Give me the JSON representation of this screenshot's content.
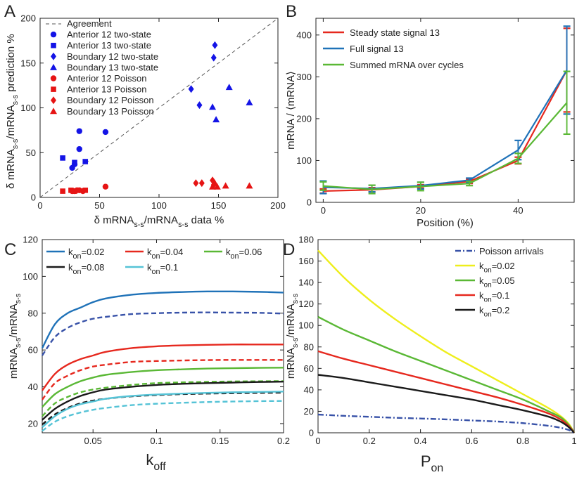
{
  "chart_data": [
    {
      "panel": "A",
      "type": "scatter",
      "xlabel": "δ mRNA_{s-s}/mRNA_{s-s} data %",
      "ylabel": "δ mRNA_{s-s}/mRNA_{s-s} prediction %",
      "xlim": [
        0,
        200
      ],
      "ylim": [
        0,
        200
      ],
      "xticks": [
        0,
        50,
        100,
        150,
        200
      ],
      "yticks": [
        0,
        50,
        100,
        150,
        200
      ],
      "legend_position": "top-left",
      "reference_line": {
        "name": "Agreement",
        "x": [
          0,
          200
        ],
        "y": [
          0,
          200
        ],
        "color": "#555555",
        "style": "dashed"
      },
      "series": [
        {
          "name": "Anterior 12 two-state",
          "marker": "circle",
          "color": "#1414e6",
          "points": [
            [
              33,
              74
            ],
            [
              55,
              73
            ],
            [
              33,
              54
            ],
            [
              29,
              37
            ],
            [
              27,
              33
            ]
          ]
        },
        {
          "name": "Anterior 13 two-state",
          "marker": "square",
          "color": "#1414e6",
          "points": [
            [
              19,
              44
            ],
            [
              29,
              39
            ],
            [
              38,
              40
            ]
          ]
        },
        {
          "name": "Boundary 12 two-state",
          "marker": "diamond",
          "color": "#1414e6",
          "points": [
            [
              147,
              170
            ],
            [
              146,
              156
            ],
            [
              127,
              121
            ],
            [
              134,
              103
            ]
          ]
        },
        {
          "name": "Boundary 13 two-state",
          "marker": "triangle",
          "color": "#1414e6",
          "points": [
            [
              159,
              123
            ],
            [
              176,
              106
            ],
            [
              145,
              101
            ],
            [
              148,
              87
            ]
          ]
        },
        {
          "name": "Anterior 12 Poisson",
          "marker": "circle",
          "color": "#e61414",
          "points": [
            [
              27,
              7
            ],
            [
              29,
              7
            ],
            [
              31,
              8
            ],
            [
              33,
              8
            ],
            [
              36,
              7
            ],
            [
              55,
              12
            ]
          ]
        },
        {
          "name": "Anterior 13 Poisson",
          "marker": "square",
          "color": "#e61414",
          "points": [
            [
              19,
              7
            ],
            [
              26,
              8
            ],
            [
              29,
              7
            ],
            [
              38,
              8
            ]
          ]
        },
        {
          "name": "Boundary 12 Poisson",
          "marker": "diamond",
          "color": "#e61414",
          "points": [
            [
              131,
              16
            ],
            [
              136,
              16
            ],
            [
              145,
              19
            ],
            [
              146,
              14
            ]
          ]
        },
        {
          "name": "Boundary 13 Poisson",
          "marker": "triangle",
          "color": "#e61414",
          "points": [
            [
              145,
              12
            ],
            [
              149,
              12
            ],
            [
              147,
              16
            ],
            [
              156,
              13
            ],
            [
              176,
              13
            ]
          ]
        }
      ]
    },
    {
      "panel": "B",
      "type": "line",
      "xlabel": "Position (%)",
      "ylabel": "mRNA / ⟨mRNA⟩",
      "xlim": [
        -1.5,
        51.5
      ],
      "ylim": [
        0,
        440
      ],
      "xticks": [
        0,
        20,
        40
      ],
      "yticks": [
        0,
        100,
        200,
        300,
        400
      ],
      "legend_position": "top-left",
      "x": [
        0,
        10,
        20,
        30,
        40,
        50
      ],
      "series": [
        {
          "name": "Steady state signal 13",
          "color": "#e6281e",
          "values": [
            27,
            30,
            38,
            50,
            100,
            316
          ],
          "err": [
            5,
            5,
            4,
            5,
            8,
            100
          ]
        },
        {
          "name": "Full signal 13",
          "color": "#1f72b8",
          "values": [
            36,
            33,
            40,
            53,
            125,
            316
          ],
          "err": [
            15,
            8,
            8,
            5,
            23,
            105
          ]
        },
        {
          "name": "Summed mRNA over cycles",
          "color": "#5ab835",
          "values": [
            39,
            31,
            38,
            45,
            105,
            238
          ],
          "err": [
            10,
            10,
            10,
            5,
            12,
            75
          ]
        }
      ]
    },
    {
      "panel": "C",
      "type": "line",
      "xlabel": "k_{off}",
      "ylabel": "mRNA_{s-s}/mRNA_{s-s}",
      "xlim": [
        0.01,
        0.2
      ],
      "ylim": [
        15,
        120
      ],
      "xticks": [
        0.05,
        0.1,
        0.15,
        0.2
      ],
      "xtick_labels": [
        "0.05",
        "0.1",
        "0.15",
        "0.2"
      ],
      "yticks": [
        20,
        40,
        60,
        80,
        100,
        120
      ],
      "legend_position": "top",
      "x": [
        0.01,
        0.02,
        0.03,
        0.04,
        0.05,
        0.06,
        0.08,
        0.1,
        0.12,
        0.14,
        0.16,
        0.18,
        0.2
      ],
      "series": [
        {
          "name": "k_{on}=0.02",
          "color": "#1f72b8",
          "style": "solid",
          "values": [
            61,
            74,
            80,
            83,
            86,
            88,
            90,
            91,
            91.5,
            91.8,
            91.8,
            91.6,
            91.2
          ]
        },
        {
          "name": "k_{on}=0.02 (dashed)",
          "color": "#3852a8",
          "style": "dashed",
          "legend": false,
          "values": [
            57,
            67,
            72,
            75,
            77,
            78,
            79.5,
            80,
            80.3,
            80.4,
            80.3,
            80.2,
            79.8
          ]
        },
        {
          "name": "k_{on}=0.04",
          "color": "#e6281e",
          "style": "solid",
          "values": [
            38,
            47,
            52,
            55,
            57,
            59,
            61,
            62,
            62.5,
            62.8,
            63,
            63,
            63
          ]
        },
        {
          "name": "k_{on}=0.04 (dashed)",
          "color": "#e6281e",
          "style": "dashed",
          "legend": false,
          "values": [
            33,
            42,
            46,
            49,
            51,
            52,
            53.5,
            54,
            54.3,
            54.5,
            54.6,
            54.6,
            54.6
          ]
        },
        {
          "name": "k_{on}=0.06",
          "color": "#5ab835",
          "style": "solid",
          "values": [
            29,
            36,
            40,
            43,
            45,
            46.5,
            48,
            49,
            49.5,
            49.9,
            50.1,
            50.3,
            50.4
          ]
        },
        {
          "name": "k_{on}=0.06 (dashed)",
          "color": "#5ab835",
          "style": "dashed",
          "legend": false,
          "values": [
            24,
            31,
            34.5,
            37,
            38.5,
            39.5,
            41,
            42,
            42.4,
            42.7,
            42.9,
            43,
            43.1
          ]
        },
        {
          "name": "k_{on}=0.08",
          "color": "#1a1a1a",
          "style": "solid",
          "values": [
            22,
            28,
            32,
            35,
            37,
            38.5,
            40,
            41,
            41.6,
            42,
            42.3,
            42.6,
            42.8
          ]
        },
        {
          "name": "k_{on}=0.08 (dashed)",
          "color": "#1a1a1a",
          "style": "dashed",
          "legend": false,
          "values": [
            19.5,
            25,
            28.5,
            31,
            32.5,
            33.5,
            34.8,
            35.5,
            36,
            36.3,
            36.5,
            36.7,
            36.8
          ]
        },
        {
          "name": "k_{on}=0.1",
          "color": "#55c3d6",
          "style": "solid",
          "values": [
            18,
            24,
            28,
            30.5,
            32,
            33.5,
            35,
            35.8,
            36.3,
            36.7,
            37,
            37.2,
            37.4
          ]
        },
        {
          "name": "k_{on}=0.1 (dashed)",
          "color": "#55c3d6",
          "style": "dashed",
          "legend": false,
          "values": [
            16,
            21,
            24,
            26,
            27.5,
            28.5,
            30,
            30.8,
            31.3,
            31.7,
            32,
            32.2,
            32.3
          ]
        }
      ]
    },
    {
      "panel": "D",
      "type": "line",
      "xlabel": "P_{on}",
      "ylabel": "mRNA_{s-s}/mRNA_{s-s}",
      "xlim": [
        0,
        1
      ],
      "ylim": [
        0,
        180
      ],
      "xticks": [
        0,
        0.2,
        0.4,
        0.6,
        0.8,
        1
      ],
      "xtick_labels": [
        "0",
        "0.2",
        "0.4",
        "0.6",
        "0.8",
        "1"
      ],
      "yticks": [
        0,
        20,
        40,
        60,
        80,
        100,
        120,
        140,
        160,
        180
      ],
      "legend_position": "top-right",
      "x": [
        0,
        0.1,
        0.2,
        0.3,
        0.4,
        0.5,
        0.6,
        0.7,
        0.8,
        0.9,
        0.95,
        0.98,
        1
      ],
      "series": [
        {
          "name": "Poisson arrivals",
          "color": "#3852a8",
          "style": "dashdot",
          "values": [
            17,
            15.8,
            14.9,
            14,
            13.3,
            12.5,
            11.5,
            10.5,
            9,
            6.5,
            4.5,
            2.5,
            0
          ]
        },
        {
          "name": "k_{on}=0.02",
          "color": "#eeee1c",
          "style": "solid",
          "values": [
            170,
            145,
            124,
            106,
            90,
            75,
            62,
            49,
            36,
            23,
            15,
            8,
            0
          ]
        },
        {
          "name": "k_{on}=0.05",
          "color": "#5ab835",
          "style": "solid",
          "values": [
            108,
            96,
            86,
            76,
            67,
            58,
            49,
            40,
            31,
            20,
            14,
            7,
            0
          ]
        },
        {
          "name": "k_{on}=0.1",
          "color": "#e6281e",
          "style": "solid",
          "values": [
            76,
            69,
            63,
            57,
            51,
            45,
            39,
            33,
            26,
            18,
            12,
            6,
            0
          ]
        },
        {
          "name": "k_{on}=0.2",
          "color": "#1a1a1a",
          "style": "solid",
          "values": [
            54,
            51,
            47,
            43,
            39,
            35,
            31,
            26,
            21,
            15,
            10,
            5,
            0
          ]
        }
      ]
    }
  ],
  "labels": {
    "letters": [
      "A",
      "B",
      "C",
      "D"
    ],
    "a_legend_title": "Agreement"
  }
}
